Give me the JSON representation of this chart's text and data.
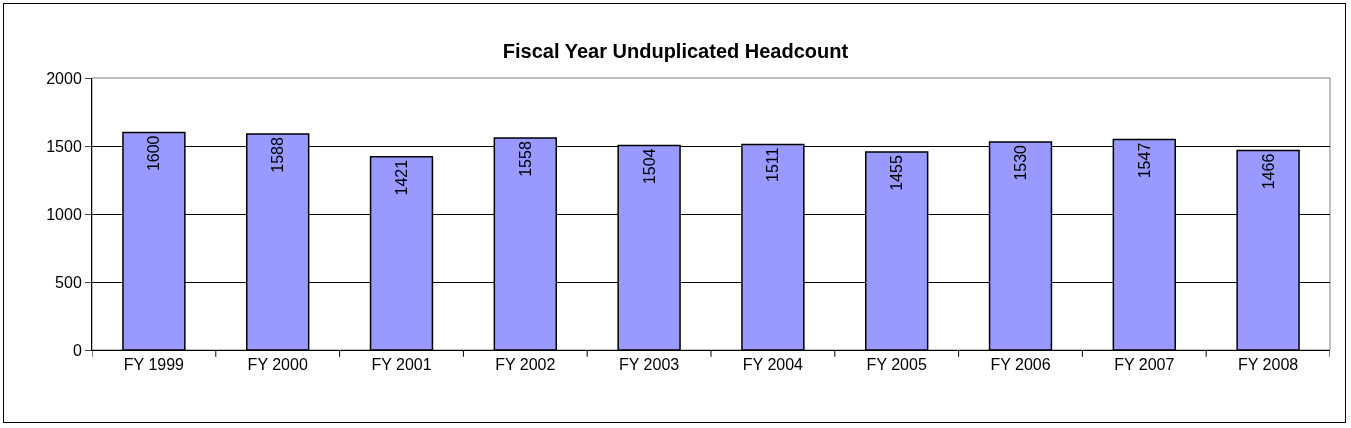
{
  "chart_data": {
    "type": "bar",
    "title": "Fiscal Year Unduplicated Headcount",
    "categories": [
      "FY 1999",
      "FY 2000",
      "FY 2001",
      "FY 2002",
      "FY 2003",
      "FY 2004",
      "FY 2005",
      "FY 2006",
      "FY 2007",
      "FY 2008"
    ],
    "values": [
      1600,
      1588,
      1421,
      1558,
      1504,
      1511,
      1455,
      1530,
      1547,
      1466
    ],
    "color": "#9999ff",
    "ylim": [
      0,
      2000
    ],
    "yticks": [
      0,
      500,
      1000,
      1500,
      2000
    ],
    "grid": "y",
    "data_labels": true,
    "legend": false
  }
}
